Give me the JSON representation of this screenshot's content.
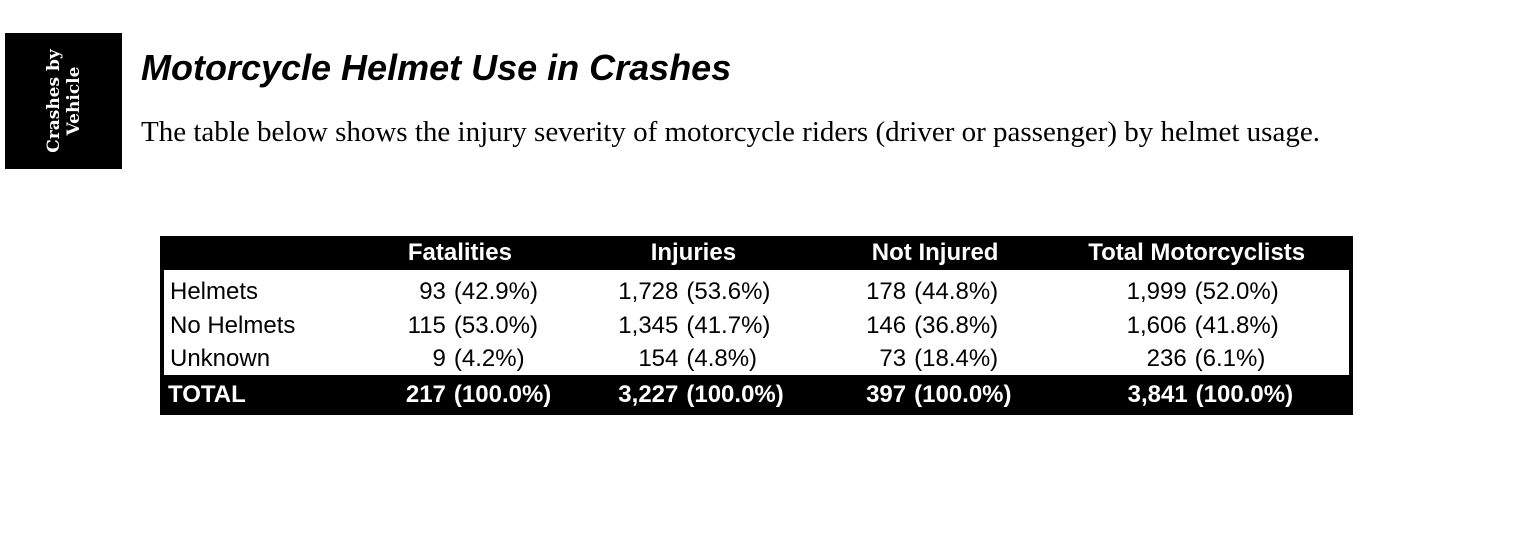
{
  "side_tab": {
    "line1": "Crashes by",
    "line2": "Vehicle"
  },
  "title": "Motorcycle Helmet Use in Crashes",
  "intro": "The table below shows the injury severity of motorcycle riders (driver or passenger) by helmet usage.",
  "table": {
    "headers": [
      "",
      "Fatalities",
      "Injuries",
      "Not Injured",
      "Total Motorcyclists"
    ],
    "rows": [
      {
        "label": "Helmets",
        "cells": [
          {
            "count": "93",
            "pct": "(42.9%)"
          },
          {
            "count": "1,728",
            "pct": "(53.6%)"
          },
          {
            "count": "178",
            "pct": "(44.8%)"
          },
          {
            "count": "1,999",
            "pct": "(52.0%)"
          }
        ]
      },
      {
        "label": "No Helmets",
        "cells": [
          {
            "count": "115",
            "pct": "(53.0%)"
          },
          {
            "count": "1,345",
            "pct": "(41.7%)"
          },
          {
            "count": "146",
            "pct": "(36.8%)"
          },
          {
            "count": "1,606",
            "pct": "(41.8%)"
          }
        ]
      },
      {
        "label": "Unknown",
        "cells": [
          {
            "count": "9",
            "pct": "(4.2%)"
          },
          {
            "count": "154",
            "pct": "(4.8%)"
          },
          {
            "count": "73",
            "pct": "(18.4%)"
          },
          {
            "count": "236",
            "pct": "(6.1%)"
          }
        ]
      }
    ],
    "total": {
      "label": "TOTAL",
      "cells": [
        {
          "count": "217",
          "pct": "(100.0%)"
        },
        {
          "count": "3,227",
          "pct": "(100.0%)"
        },
        {
          "count": "397",
          "pct": "(100.0%)"
        },
        {
          "count": "3,841",
          "pct": "(100.0%)"
        }
      ]
    }
  }
}
